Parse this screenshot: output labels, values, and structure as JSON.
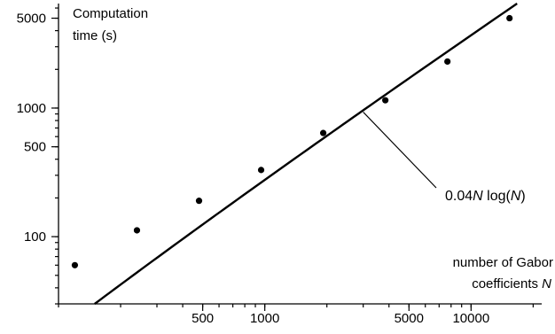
{
  "chart_data": {
    "type": "scatter",
    "xscale": "log",
    "yscale": "log",
    "xlim": [
      100,
      22000
    ],
    "ylim": [
      30,
      6500
    ],
    "xlabel_line1": "number of Gabor",
    "xlabel_line2_prefix": "coefficients ",
    "xlabel_line2_var": "N",
    "ylabel_line1": "Computation",
    "ylabel_line2": "time (s)",
    "xticks_major": [
      500,
      1000,
      5000,
      10000
    ],
    "xtick_labels": [
      "500",
      "1000",
      "5000",
      "10000"
    ],
    "yticks_major": [
      100,
      500,
      1000,
      5000
    ],
    "ytick_labels": [
      "100",
      "500",
      "1000",
      "5000"
    ],
    "points": [
      {
        "x": 120,
        "y": 60
      },
      {
        "x": 240,
        "y": 112
      },
      {
        "x": 480,
        "y": 190
      },
      {
        "x": 960,
        "y": 330
      },
      {
        "x": 1920,
        "y": 640
      },
      {
        "x": 3840,
        "y": 1150
      },
      {
        "x": 7680,
        "y": 2300
      },
      {
        "x": 15360,
        "y": 5000
      }
    ],
    "fit": {
      "coef": 0.04,
      "formula": "N log(N)"
    },
    "annotation": {
      "coef": "0.04",
      "var1": "N",
      "mid": " log(",
      "var2": "N",
      "end": ")",
      "x": 3000
    },
    "color": "#000000"
  }
}
